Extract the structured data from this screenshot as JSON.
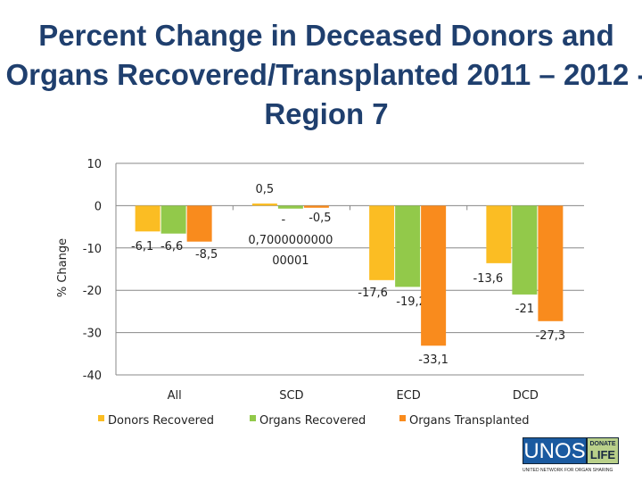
{
  "title": "Percent Change in Deceased Donors and Organs Recovered/Transplanted 2011 – 2012 - Region 7",
  "logo": {
    "main": "UNOS",
    "badge_top": "DONATE",
    "badge_bottom": "LIFE",
    "subtitle": "UNITED NETWORK FOR ORGAN SHARING"
  },
  "chart_data": {
    "type": "bar",
    "title": "",
    "ylabel": "% Change",
    "xlabel": "",
    "ylim": [
      -40,
      10
    ],
    "yticks": [
      10,
      0,
      -10,
      -20,
      -30,
      -40
    ],
    "grid": true,
    "legend": "bottom",
    "categories": [
      "All",
      "SCD",
      "ECD",
      "DCD"
    ],
    "series": [
      {
        "name": "Donors Recovered",
        "color": "#fbbd23",
        "values": [
          -6.1,
          0.5,
          -17.6,
          -13.6
        ],
        "labels": [
          "-6,1",
          "0,5",
          "-17,6",
          "-13,6"
        ]
      },
      {
        "name": "Organs Recovered",
        "color": "#92c94a",
        "values": [
          -6.6,
          -0.700000000000001,
          -19.2,
          -21
        ],
        "labels": [
          "-6,6",
          "- 0,7000000000 00001",
          "-19,2",
          "-21"
        ]
      },
      {
        "name": "Organs Transplanted",
        "color": "#f98b1d",
        "values": [
          -8.5,
          -0.5,
          -33.1,
          -27.3
        ],
        "labels": [
          "-8,5",
          "-0,5",
          "-33,1",
          "-27,3"
        ]
      }
    ]
  }
}
